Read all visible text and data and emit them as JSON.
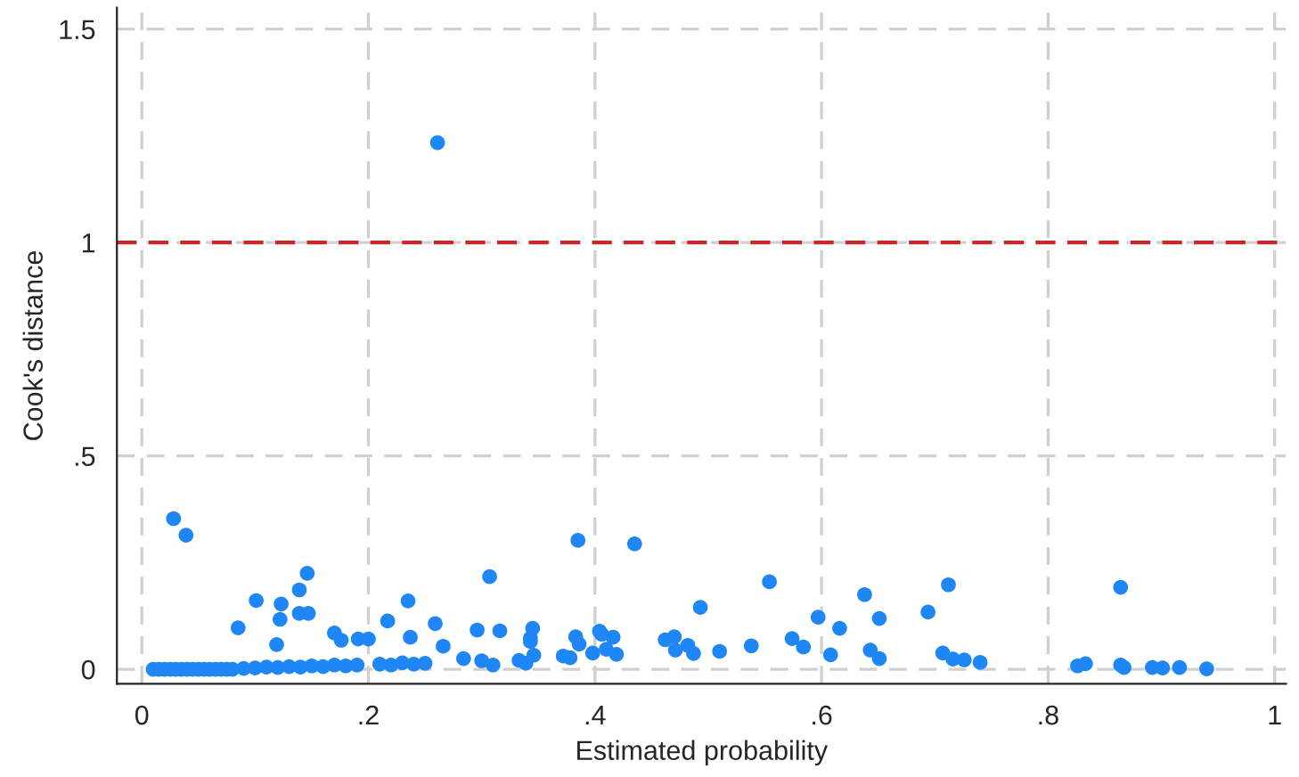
{
  "chart_data": {
    "type": "scatter",
    "xlabel": "Estimated probability",
    "ylabel": "Cook's distance",
    "xlim": [
      -0.022,
      1.01
    ],
    "ylim": [
      -0.034,
      1.55
    ],
    "xticks": [
      {
        "value": 0,
        "label": "0"
      },
      {
        "value": 0.2,
        "label": ".2"
      },
      {
        "value": 0.4,
        "label": ".4"
      },
      {
        "value": 0.6,
        "label": ".6"
      },
      {
        "value": 0.8,
        "label": ".8"
      },
      {
        "value": 1,
        "label": "1"
      }
    ],
    "yticks": [
      {
        "value": 0,
        "label": "0"
      },
      {
        "value": 0.5,
        "label": ".5"
      },
      {
        "value": 1,
        "label": "1"
      },
      {
        "value": 1.5,
        "label": "1.5"
      }
    ],
    "grid": true,
    "marker": "circle",
    "ref_lines": [
      {
        "axis": "y",
        "value": 1,
        "color": "#c8282a",
        "line_style": "dashed"
      }
    ],
    "series": [
      {
        "color": "#1f87f5",
        "x": [
          0.01,
          0.015,
          0.02,
          0.025,
          0.03,
          0.035,
          0.04,
          0.045,
          0.05,
          0.055,
          0.06,
          0.065,
          0.07,
          0.075,
          0.08,
          0.09,
          0.1,
          0.11,
          0.12,
          0.13,
          0.14,
          0.15,
          0.16,
          0.17,
          0.18,
          0.19,
          0.21,
          0.22,
          0.23,
          0.24,
          0.25,
          0.028,
          0.039,
          0.085,
          0.101,
          0.123,
          0.122,
          0.139,
          0.146,
          0.139,
          0.147,
          0.119,
          0.17,
          0.176,
          0.191,
          0.2,
          0.217,
          0.235,
          0.237,
          0.259,
          0.266,
          0.296,
          0.307,
          0.316,
          0.284,
          0.3,
          0.31,
          0.261,
          0.385,
          0.435,
          0.345,
          0.343,
          0.343,
          0.383,
          0.386,
          0.404,
          0.406,
          0.416,
          0.41,
          0.419,
          0.398,
          0.462,
          0.47,
          0.471,
          0.482,
          0.487,
          0.493,
          0.51,
          0.538,
          0.554,
          0.574,
          0.584,
          0.597,
          0.608,
          0.616,
          0.638,
          0.643,
          0.651,
          0.651,
          0.333,
          0.339,
          0.346,
          0.372,
          0.378,
          0.694,
          0.712,
          0.707,
          0.716,
          0.726,
          0.74,
          0.826,
          0.833,
          0.864,
          0.864,
          0.867,
          0.892,
          0.901,
          0.916,
          0.94
        ],
        "values": [
          0,
          0,
          0,
          0,
          0,
          0,
          0,
          0,
          0,
          0,
          0,
          0,
          0,
          0,
          0,
          0.002,
          0.003,
          0.005,
          0.004,
          0.006,
          0.005,
          0.008,
          0.006,
          0.01,
          0.008,
          0.01,
          0.012,
          0.01,
          0.015,
          0.012,
          0.014,
          0.353,
          0.314,
          0.097,
          0.161,
          0.153,
          0.117,
          0.186,
          0.225,
          0.131,
          0.131,
          0.058,
          0.085,
          0.068,
          0.071,
          0.071,
          0.113,
          0.16,
          0.075,
          0.107,
          0.054,
          0.092,
          0.217,
          0.09,
          0.025,
          0.02,
          0.01,
          1.234,
          0.302,
          0.294,
          0.096,
          0.073,
          0.065,
          0.076,
          0.059,
          0.089,
          0.082,
          0.075,
          0.047,
          0.035,
          0.038,
          0.069,
          0.076,
          0.045,
          0.056,
          0.037,
          0.145,
          0.042,
          0.055,
          0.205,
          0.072,
          0.052,
          0.122,
          0.034,
          0.096,
          0.175,
          0.045,
          0.119,
          0.025,
          0.021,
          0.014,
          0.033,
          0.031,
          0.027,
          0.134,
          0.198,
          0.038,
          0.024,
          0.022,
          0.016,
          0.008,
          0.013,
          0.192,
          0.01,
          0.004,
          0.004,
          0.003,
          0.004,
          0.001
        ]
      }
    ]
  }
}
